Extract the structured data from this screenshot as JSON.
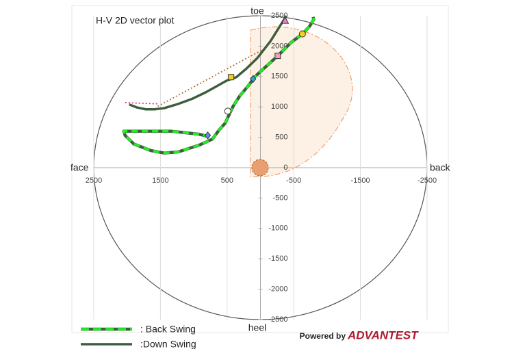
{
  "chart_data": {
    "type": "vector",
    "title": "H-V 2D vector plot",
    "top_label": "toe",
    "bottom_label": "heel",
    "left_label": "face",
    "right_label": "back",
    "xlim": [
      2500,
      -2500
    ],
    "ylim": [
      -2500,
      2500
    ],
    "xticks": [
      2500,
      1500,
      500,
      -500,
      -1500,
      -2500
    ],
    "yticks": [
      2500,
      2000,
      1500,
      1000,
      500,
      0,
      -500,
      -1000,
      -1500,
      -2000,
      -2500
    ],
    "grid": true,
    "series": [
      {
        "name": ": Back Swing",
        "color": "#22ee22",
        "style": "dashed",
        "x": [
          770,
          920,
          1340,
          1850,
          2050,
          2030,
          1900,
          1640,
          1440,
          1230,
          920,
          720,
          620,
          530,
          470,
          410,
          310,
          180,
          80,
          -50,
          -260,
          -460,
          -630,
          -740,
          -800,
          -790
        ],
        "y": [
          510,
          550,
          600,
          600,
          600,
          530,
          390,
          280,
          240,
          260,
          370,
          470,
          620,
          730,
          870,
          1010,
          1180,
          1350,
          1500,
          1630,
          1840,
          2060,
          2200,
          2330,
          2440,
          2480
        ]
      },
      {
        "name": ":Down Swing",
        "color": "#3d5e3d",
        "style": "solid",
        "x": [
          -390,
          -150,
          50,
          210,
          360,
          510,
          640,
          820,
          1030,
          1230,
          1440,
          1590,
          1720,
          1850,
          1970
        ],
        "y": [
          2500,
          2080,
          1800,
          1630,
          1490,
          1430,
          1350,
          1240,
          1130,
          1050,
          980,
          960,
          960,
          990,
          1040
        ]
      },
      {
        "color": "#b0703a",
        "style": "dotted",
        "x": [
          1540,
          -30
        ],
        "y": [
          1010,
          1940
        ]
      },
      {
        "color": "#e0307a",
        "style": "dotted",
        "x": [
          2030,
          1520
        ],
        "y": [
          1070,
          1050
        ]
      }
    ],
    "markers": [
      {
        "shape": "triangle",
        "color": "#f080c0",
        "x": -370,
        "y": 2420
      },
      {
        "shape": "circle",
        "color": "#f5d020",
        "x": -630,
        "y": 2200
      },
      {
        "shape": "square",
        "color": "#f0a0b0",
        "x": -260,
        "y": 1840
      },
      {
        "shape": "square",
        "color": "#f5d020",
        "x": 440,
        "y": 1490
      },
      {
        "shape": "diamond",
        "color": "#30a0e0",
        "x": 110,
        "y": 1460
      },
      {
        "shape": "circle",
        "color": "#ffffff",
        "x": 490,
        "y": 930
      },
      {
        "shape": "diamond",
        "color": "#6090e0",
        "x": 790,
        "y": 530
      }
    ],
    "brand_prefix": "Powered by",
    "brand": "ADVANTEST"
  }
}
